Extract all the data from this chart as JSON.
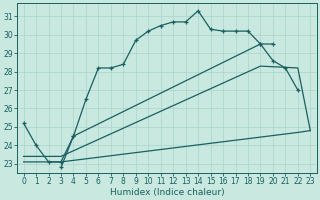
{
  "xlabel": "Humidex (Indice chaleur)",
  "bg_color": "#c8e8e0",
  "grid_color": "#b0d8d0",
  "line_color": "#1a6060",
  "xlim": [
    -0.5,
    23.5
  ],
  "ylim": [
    22.5,
    31.7
  ],
  "yticks": [
    23,
    24,
    25,
    26,
    27,
    28,
    29,
    30,
    31
  ],
  "xticks": [
    0,
    1,
    2,
    3,
    4,
    5,
    6,
    7,
    8,
    9,
    10,
    11,
    12,
    13,
    14,
    15,
    16,
    17,
    18,
    19,
    20,
    21,
    22,
    23
  ],
  "series1_x": [
    0,
    1,
    2,
    3,
    4,
    5,
    6,
    7,
    8,
    9,
    10,
    11,
    12,
    13,
    14,
    15,
    16,
    17,
    18,
    19,
    20
  ],
  "series1_y": [
    25.2,
    24.0,
    23.1,
    23.1,
    24.5,
    26.5,
    28.2,
    28.2,
    28.4,
    29.7,
    30.2,
    30.5,
    30.7,
    30.7,
    31.3,
    30.3,
    30.2,
    30.2,
    30.2,
    29.5,
    29.5
  ],
  "series2_x": [
    3,
    4,
    19,
    20,
    21,
    22
  ],
  "series2_y": [
    22.8,
    24.5,
    29.5,
    28.6,
    28.2,
    27.0
  ],
  "series3_x": [
    0,
    3,
    22,
    23
  ],
  "series3_y": [
    23.1,
    23.1,
    24.7,
    24.8
  ],
  "series4_x": [
    0,
    3,
    19,
    22,
    23
  ],
  "series4_y": [
    23.4,
    23.4,
    28.3,
    28.2,
    24.8
  ]
}
